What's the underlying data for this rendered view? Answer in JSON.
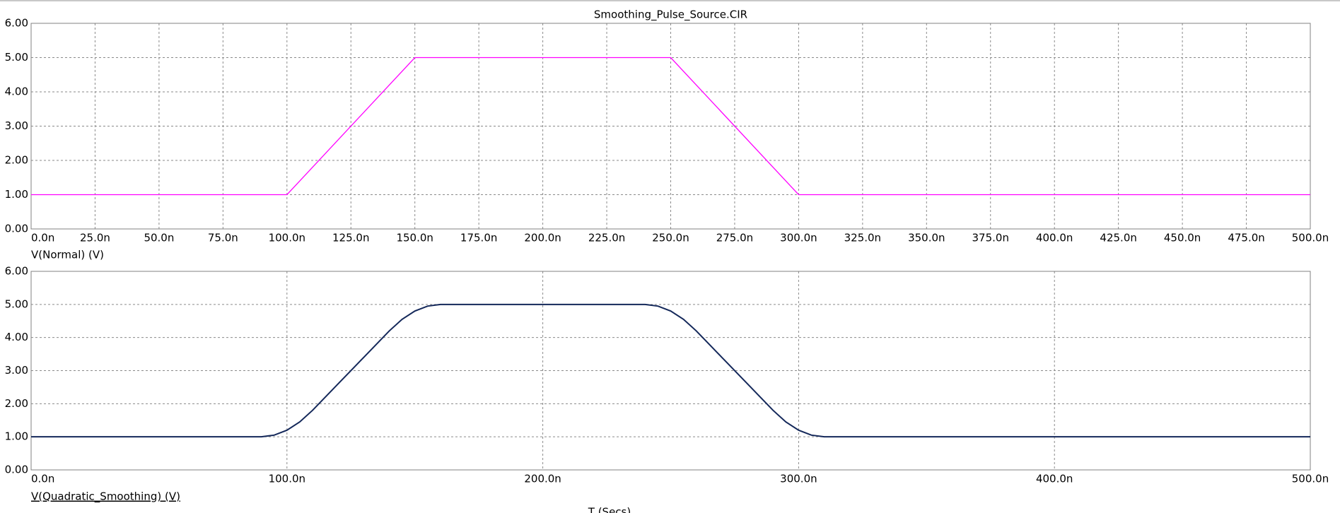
{
  "chart_data": [
    {
      "type": "line",
      "title": "Smoothing_Pulse_Source.CIR",
      "x": [
        0,
        100,
        150,
        250,
        300,
        500
      ],
      "series": [
        {
          "name": "V(Normal) (V)",
          "color": "#ff00ff",
          "values": [
            1,
            1,
            5,
            5,
            1,
            1
          ]
        }
      ],
      "xlim": [
        0,
        500
      ],
      "xticks": [
        {
          "value": 0,
          "label": "0.0n"
        },
        {
          "value": 25,
          "label": "25.0n"
        },
        {
          "value": 50,
          "label": "50.0n"
        },
        {
          "value": 75,
          "label": "75.0n"
        },
        {
          "value": 100,
          "label": "100.0n"
        },
        {
          "value": 125,
          "label": "125.0n"
        },
        {
          "value": 150,
          "label": "150.0n"
        },
        {
          "value": 175,
          "label": "175.0n"
        },
        {
          "value": 200,
          "label": "200.0n"
        },
        {
          "value": 225,
          "label": "225.0n"
        },
        {
          "value": 250,
          "label": "250.0n"
        },
        {
          "value": 275,
          "label": "275.0n"
        },
        {
          "value": 300,
          "label": "300.0n"
        },
        {
          "value": 325,
          "label": "325.0n"
        },
        {
          "value": 350,
          "label": "350.0n"
        },
        {
          "value": 375,
          "label": "375.0n"
        },
        {
          "value": 400,
          "label": "400.0n"
        },
        {
          "value": 425,
          "label": "425.0n"
        },
        {
          "value": 450,
          "label": "450.0n"
        },
        {
          "value": 475,
          "label": "475.0n"
        },
        {
          "value": 500,
          "label": "500.0n"
        }
      ],
      "ylim": [
        0,
        6
      ],
      "yticks": [
        {
          "value": 0,
          "label": "0.00"
        },
        {
          "value": 1,
          "label": "1.00"
        },
        {
          "value": 2,
          "label": "2.00"
        },
        {
          "value": 3,
          "label": "3.00"
        },
        {
          "value": 4,
          "label": "4.00"
        },
        {
          "value": 5,
          "label": "5.00"
        },
        {
          "value": 6,
          "label": "6.00"
        }
      ],
      "grid": true
    },
    {
      "type": "line",
      "xlabel": "T (Secs)",
      "x": [
        0,
        90,
        95,
        100,
        105,
        110,
        120,
        130,
        140,
        145,
        150,
        155,
        160,
        240,
        245,
        250,
        255,
        260,
        270,
        280,
        290,
        295,
        300,
        305,
        310,
        500
      ],
      "series": [
        {
          "name": "V(Quadratic_Smoothing) (V)",
          "color": "#14285a",
          "values": [
            1,
            1,
            1.05,
            1.2,
            1.45,
            1.8,
            2.6,
            3.4,
            4.2,
            4.55,
            4.8,
            4.95,
            5,
            5,
            4.95,
            4.8,
            4.55,
            4.2,
            3.4,
            2.6,
            1.8,
            1.45,
            1.2,
            1.05,
            1,
            1
          ]
        }
      ],
      "xlim": [
        0,
        500
      ],
      "xticks": [
        {
          "value": 0,
          "label": "0.0n"
        },
        {
          "value": 100,
          "label": "100.0n"
        },
        {
          "value": 200,
          "label": "200.0n"
        },
        {
          "value": 300,
          "label": "300.0n"
        },
        {
          "value": 400,
          "label": "400.0n"
        },
        {
          "value": 500,
          "label": "500.0n"
        }
      ],
      "ylim": [
        0,
        6
      ],
      "yticks": [
        {
          "value": 0,
          "label": "0.00"
        },
        {
          "value": 1,
          "label": "1.00"
        },
        {
          "value": 2,
          "label": "2.00"
        },
        {
          "value": 3,
          "label": "3.00"
        },
        {
          "value": 4,
          "label": "4.00"
        },
        {
          "value": 5,
          "label": "5.00"
        },
        {
          "value": 6,
          "label": "6.00"
        }
      ],
      "grid": true
    }
  ]
}
